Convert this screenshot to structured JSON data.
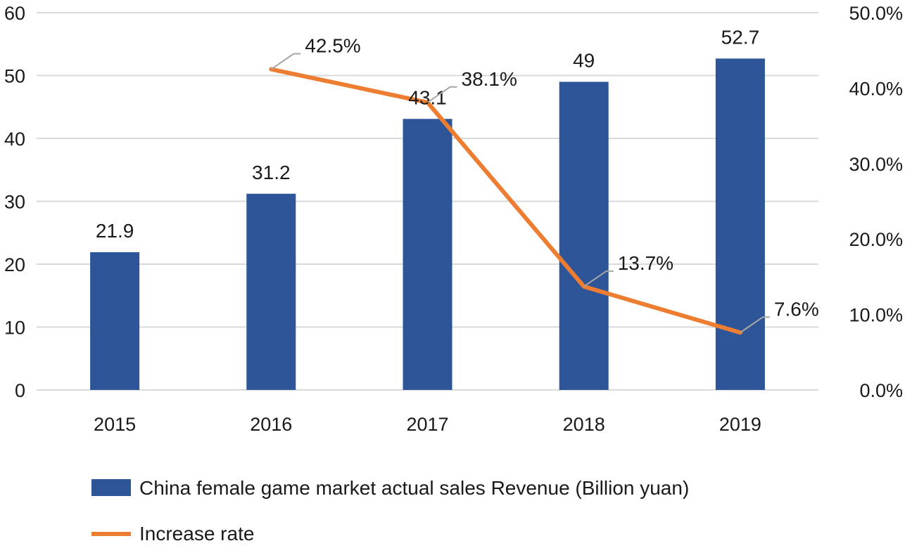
{
  "chart_data": {
    "type": "bar",
    "categories": [
      "2015",
      "2016",
      "2017",
      "2018",
      "2019"
    ],
    "series": [
      {
        "name": "China female game market actual sales Revenue (Billion yuan)",
        "type": "bar",
        "axis": "left",
        "values": [
          21.9,
          31.2,
          43.1,
          49,
          52.7
        ],
        "value_labels": [
          "21.9",
          "31.2",
          "43.1",
          "49",
          "52.7"
        ],
        "color": "#2E5597"
      },
      {
        "name": "Increase rate",
        "type": "line",
        "axis": "right",
        "values": [
          null,
          42.5,
          38.1,
          13.7,
          7.6
        ],
        "value_labels": [
          null,
          "42.5%",
          "38.1%",
          "13.7%",
          "7.6%"
        ],
        "color": "#ED7D31"
      }
    ],
    "y_left": {
      "lim": [
        0,
        60
      ],
      "ticks": [
        0,
        10,
        20,
        30,
        40,
        50,
        60
      ],
      "tick_labels": [
        "0",
        "10",
        "20",
        "30",
        "40",
        "50",
        "60"
      ]
    },
    "y_right": {
      "lim": [
        0,
        50
      ],
      "ticks": [
        0,
        10,
        20,
        30,
        40,
        50
      ],
      "tick_labels": [
        "0.0%",
        "10.0%",
        "20.0%",
        "30.0%",
        "40.0%",
        "50.0%"
      ]
    },
    "grid": true,
    "grid_color": "#D9D9D9",
    "leader_line_color": "#A6A6A6",
    "legend_position": "bottom"
  }
}
